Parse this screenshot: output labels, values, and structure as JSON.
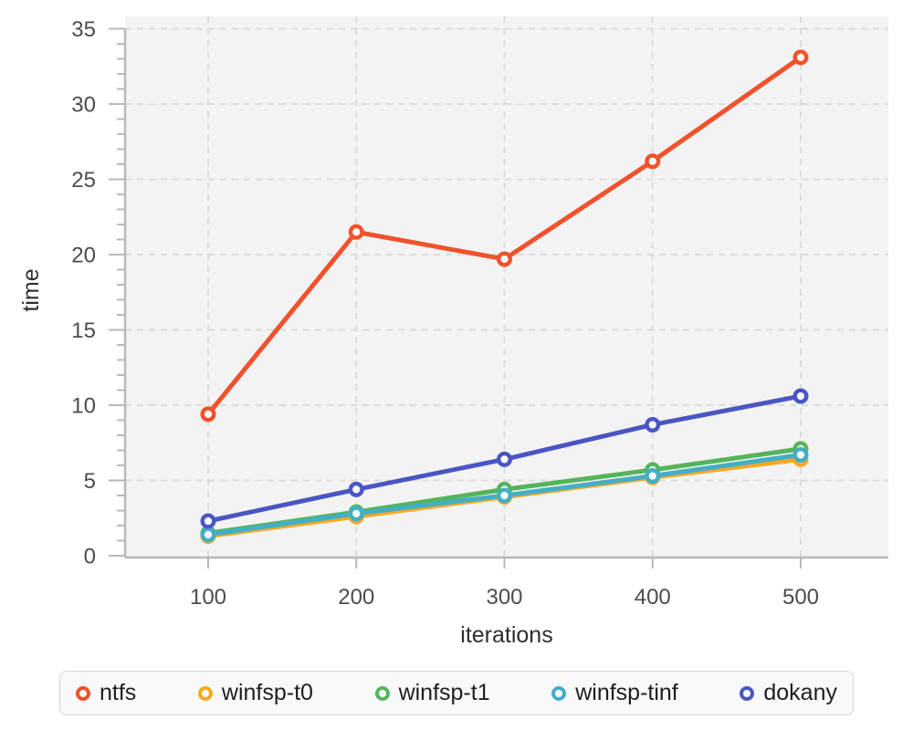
{
  "chart_data": {
    "type": "line",
    "title": "",
    "xlabel": "iterations",
    "ylabel": "time",
    "x": [
      100,
      200,
      300,
      400,
      500
    ],
    "xticks": [
      100,
      200,
      300,
      400,
      500
    ],
    "yticks": [
      0,
      5,
      10,
      15,
      20,
      25,
      30,
      35
    ],
    "ylim": [
      0,
      36
    ],
    "xlim": [
      45,
      560
    ],
    "grid": true,
    "grid_style": "dashed",
    "minor_ticks_y_every": 1,
    "legend_position": "bottom",
    "marker": "open-circle",
    "series": [
      {
        "name": "ntfs",
        "color": "#f1512b",
        "values": [
          9.4,
          21.5,
          19.7,
          26.2,
          33.1
        ]
      },
      {
        "name": "winfsp-t0",
        "color": "#f7a823",
        "values": [
          1.3,
          2.6,
          3.9,
          5.2,
          6.4
        ]
      },
      {
        "name": "winfsp-t1",
        "color": "#55b45a",
        "values": [
          1.5,
          2.9,
          4.4,
          5.7,
          7.1
        ]
      },
      {
        "name": "winfsp-tinf",
        "color": "#43aec6",
        "values": [
          1.4,
          2.8,
          4.0,
          5.3,
          6.7
        ]
      },
      {
        "name": "dokany",
        "color": "#4a55c4",
        "values": [
          2.3,
          4.4,
          6.4,
          8.7,
          10.6
        ]
      }
    ],
    "style": {
      "plot_bg": "#f3f3f3",
      "grid_color": "#dcdcdc",
      "axis_color": "#b9b9b9",
      "tick_label_color": "#4c4c4c",
      "axis_title_color": "#2d2d2d",
      "legend_bg": "#f9f9f9",
      "legend_border": "#d6d6d6",
      "legend_text": "#1e1e1e"
    }
  }
}
